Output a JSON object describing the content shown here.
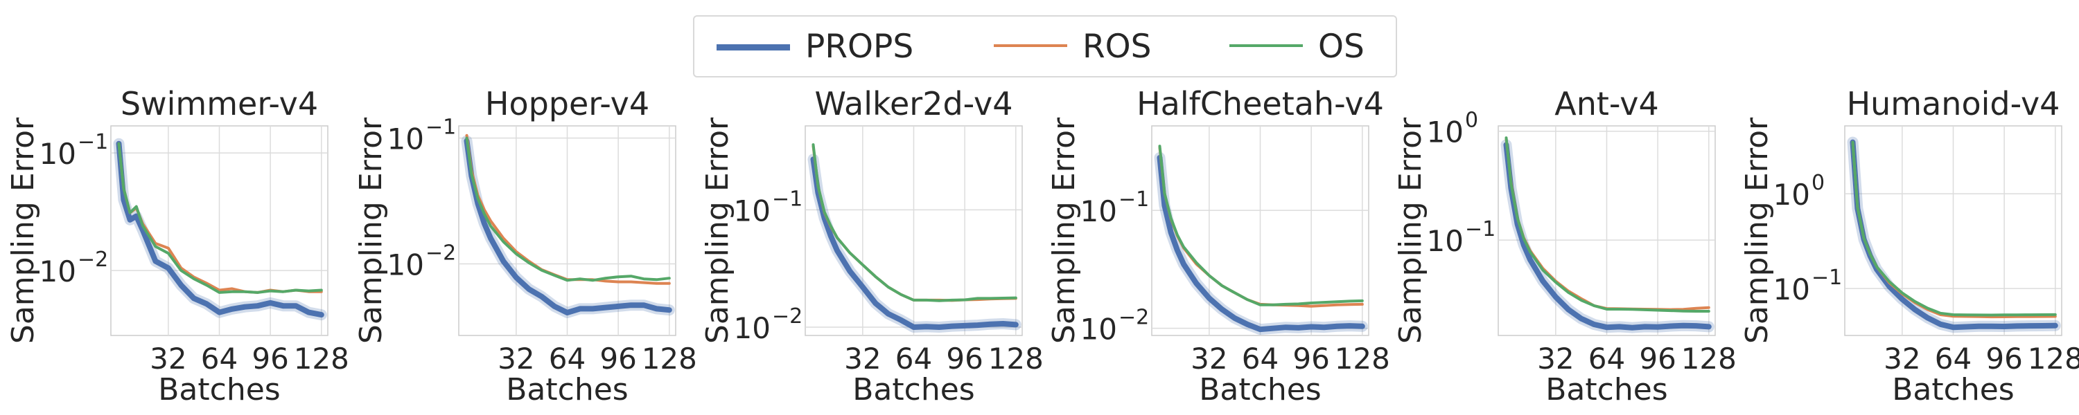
{
  "colors": {
    "PROPS": "#4c72b0",
    "ROS": "#dd8452",
    "OS": "#55a868",
    "grid": "#dcdcdc"
  },
  "legend": {
    "items": [
      {
        "label": "PROPS",
        "color": "#4c72b0"
      },
      {
        "label": "ROS",
        "color": "#dd8452"
      },
      {
        "label": "OS",
        "color": "#55a868"
      }
    ]
  },
  "chart_data": [
    {
      "type": "line",
      "title": "Swimmer-v4",
      "xlabel": "Batches",
      "ylabel": "Sampling Error",
      "yscale": "log",
      "xlim": [
        -4,
        132
      ],
      "ylim": [
        0.0028,
        0.17
      ],
      "xticks": [
        32,
        64,
        96,
        128
      ],
      "yticks": [
        0.1,
        0.01
      ],
      "yticklabels": [
        "10^-1",
        "10^-2"
      ],
      "x": [
        1,
        4,
        8,
        12,
        16,
        24,
        32,
        40,
        48,
        56,
        64,
        72,
        80,
        88,
        96,
        104,
        112,
        120,
        128
      ],
      "series": [
        {
          "name": "PROPS",
          "values": [
            0.12,
            0.04,
            0.027,
            0.029,
            0.022,
            0.012,
            0.0105,
            0.0075,
            0.0058,
            0.0052,
            0.0044,
            0.0047,
            0.0049,
            0.005,
            0.0053,
            0.005,
            0.005,
            0.0044,
            0.0042
          ]
        },
        {
          "name": "ROS",
          "values": [
            0.12,
            0.05,
            0.031,
            0.034,
            0.025,
            0.017,
            0.0155,
            0.0105,
            0.0088,
            0.0078,
            0.0068,
            0.007,
            0.0066,
            0.0065,
            0.0068,
            0.0066,
            0.0068,
            0.0066,
            0.0066
          ]
        },
        {
          "name": "OS",
          "values": [
            0.12,
            0.05,
            0.031,
            0.035,
            0.024,
            0.016,
            0.014,
            0.01,
            0.0085,
            0.0075,
            0.0065,
            0.0066,
            0.0066,
            0.0065,
            0.0067,
            0.0066,
            0.0068,
            0.0067,
            0.0068
          ]
        }
      ]
    },
    {
      "type": "line",
      "title": "Hopper-v4",
      "xlabel": "Batches",
      "ylabel": "Sampling Error",
      "yscale": "log",
      "xlim": [
        -4,
        132
      ],
      "ylim": [
        0.0027,
        0.125
      ],
      "xticks": [
        32,
        64,
        96,
        128
      ],
      "yticks": [
        0.1,
        0.01
      ],
      "yticklabels": [
        "10^-1",
        "10^-2"
      ],
      "x": [
        1,
        4,
        8,
        12,
        16,
        24,
        32,
        40,
        48,
        56,
        64,
        72,
        80,
        88,
        96,
        104,
        112,
        120,
        128
      ],
      "series": [
        {
          "name": "PROPS",
          "values": [
            0.095,
            0.05,
            0.03,
            0.021,
            0.016,
            0.0105,
            0.0078,
            0.0063,
            0.0055,
            0.0046,
            0.0041,
            0.0044,
            0.0044,
            0.0045,
            0.0046,
            0.0047,
            0.0047,
            0.0044,
            0.0043
          ]
        },
        {
          "name": "ROS",
          "values": [
            0.105,
            0.055,
            0.035,
            0.027,
            0.022,
            0.016,
            0.0125,
            0.0105,
            0.009,
            0.0082,
            0.0075,
            0.0075,
            0.0075,
            0.0073,
            0.0072,
            0.0072,
            0.0071,
            0.007,
            0.007
          ]
        },
        {
          "name": "OS",
          "values": [
            0.1,
            0.052,
            0.033,
            0.025,
            0.02,
            0.015,
            0.012,
            0.0102,
            0.0089,
            0.0081,
            0.0074,
            0.0076,
            0.0074,
            0.0077,
            0.0079,
            0.008,
            0.0076,
            0.0075,
            0.0077
          ]
        }
      ]
    },
    {
      "type": "line",
      "title": "Walker2d-v4",
      "xlabel": "Batches",
      "ylabel": "Sampling Error",
      "yscale": "log",
      "xlim": [
        -4,
        132
      ],
      "ylim": [
        0.0085,
        0.52
      ],
      "xticks": [
        32,
        64,
        96,
        128
      ],
      "yticks": [
        0.1,
        0.01
      ],
      "yticklabels": [
        "10^-1",
        "10^-2"
      ],
      "x": [
        1,
        4,
        8,
        12,
        16,
        24,
        32,
        40,
        48,
        56,
        64,
        72,
        80,
        88,
        96,
        104,
        112,
        120,
        128
      ],
      "series": [
        {
          "name": "PROPS",
          "values": [
            0.27,
            0.14,
            0.085,
            0.06,
            0.045,
            0.03,
            0.022,
            0.016,
            0.013,
            0.0115,
            0.01,
            0.0101,
            0.01,
            0.0102,
            0.0103,
            0.0104,
            0.0106,
            0.0107,
            0.0105
          ]
        },
        {
          "name": "ROS",
          "values": [
            0.35,
            0.16,
            0.095,
            0.072,
            0.058,
            0.043,
            0.034,
            0.027,
            0.022,
            0.019,
            0.017,
            0.017,
            0.017,
            0.0169,
            0.0171,
            0.0172,
            0.0174,
            0.0175,
            0.0176
          ]
        },
        {
          "name": "OS",
          "values": [
            0.36,
            0.16,
            0.096,
            0.073,
            0.058,
            0.043,
            0.034,
            0.027,
            0.022,
            0.019,
            0.017,
            0.017,
            0.0168,
            0.017,
            0.0171,
            0.0176,
            0.0176,
            0.0177,
            0.0178
          ]
        }
      ]
    },
    {
      "type": "line",
      "title": "HalfCheetah-v4",
      "xlabel": "Batches",
      "ylabel": "Sampling Error",
      "yscale": "log",
      "xlim": [
        -4,
        132
      ],
      "ylim": [
        0.0087,
        0.52
      ],
      "xticks": [
        32,
        64,
        96,
        128
      ],
      "yticks": [
        0.1,
        0.01
      ],
      "yticklabels": [
        "10^-1",
        "10^-2"
      ],
      "x": [
        1,
        4,
        8,
        12,
        16,
        24,
        32,
        40,
        48,
        56,
        64,
        72,
        80,
        88,
        96,
        104,
        112,
        120,
        128
      ],
      "series": [
        {
          "name": "PROPS",
          "values": [
            0.28,
            0.11,
            0.065,
            0.046,
            0.035,
            0.024,
            0.018,
            0.0145,
            0.0122,
            0.0108,
            0.0098,
            0.01,
            0.0102,
            0.0101,
            0.0103,
            0.0102,
            0.0104,
            0.0105,
            0.0104
          ]
        },
        {
          "name": "ROS",
          "values": [
            0.34,
            0.14,
            0.085,
            0.061,
            0.048,
            0.035,
            0.028,
            0.023,
            0.02,
            0.0175,
            0.016,
            0.0158,
            0.0157,
            0.0156,
            0.0154,
            0.0156,
            0.0158,
            0.0159,
            0.016
          ]
        },
        {
          "name": "OS",
          "values": [
            0.35,
            0.14,
            0.086,
            0.062,
            0.049,
            0.036,
            0.028,
            0.023,
            0.02,
            0.0175,
            0.0158,
            0.0158,
            0.016,
            0.0161,
            0.0164,
            0.0166,
            0.0168,
            0.017,
            0.0171
          ]
        }
      ]
    },
    {
      "type": "line",
      "title": "Ant-v4",
      "xlabel": "Batches",
      "ylabel": "Sampling Error",
      "yscale": "log",
      "xlim": [
        -4,
        132
      ],
      "ylim": [
        0.0133,
        1.12
      ],
      "xticks": [
        32,
        64,
        96,
        128
      ],
      "yticks": [
        1,
        0.1
      ],
      "yticklabels": [
        "10^0",
        "10^-1"
      ],
      "x": [
        1,
        4,
        8,
        12,
        16,
        24,
        32,
        40,
        48,
        56,
        64,
        72,
        80,
        88,
        96,
        104,
        112,
        120,
        128
      ],
      "series": [
        {
          "name": "PROPS",
          "values": [
            0.75,
            0.3,
            0.14,
            0.09,
            0.066,
            0.042,
            0.03,
            0.023,
            0.019,
            0.0168,
            0.0158,
            0.016,
            0.0157,
            0.016,
            0.0159,
            0.0162,
            0.0164,
            0.0163,
            0.016
          ]
        },
        {
          "name": "ROS",
          "values": [
            0.85,
            0.34,
            0.16,
            0.105,
            0.08,
            0.055,
            0.042,
            0.034,
            0.029,
            0.025,
            0.0235,
            0.0234,
            0.0233,
            0.0232,
            0.0231,
            0.023,
            0.0231,
            0.0236,
            0.024
          ]
        },
        {
          "name": "OS",
          "values": [
            0.87,
            0.33,
            0.16,
            0.103,
            0.078,
            0.053,
            0.041,
            0.033,
            0.028,
            0.025,
            0.0232,
            0.0232,
            0.0231,
            0.0229,
            0.0227,
            0.0225,
            0.0223,
            0.0222,
            0.0222
          ]
        }
      ]
    },
    {
      "type": "line",
      "title": "Humanoid-v4",
      "xlabel": "Batches",
      "ylabel": "Sampling Error",
      "yscale": "log",
      "xlim": [
        -4,
        132
      ],
      "ylim": [
        0.032,
        5.2
      ],
      "xticks": [
        32,
        64,
        96,
        128
      ],
      "yticks": [
        1,
        0.1
      ],
      "yticklabels": [
        "10^0",
        "10^-1"
      ],
      "x": [
        1,
        4,
        8,
        12,
        16,
        24,
        32,
        40,
        48,
        56,
        64,
        72,
        80,
        88,
        96,
        104,
        112,
        120,
        128
      ],
      "series": [
        {
          "name": "PROPS",
          "values": [
            3.5,
            0.7,
            0.33,
            0.22,
            0.16,
            0.105,
            0.077,
            0.06,
            0.049,
            0.042,
            0.039,
            0.0395,
            0.04,
            0.04,
            0.0398,
            0.0402,
            0.0404,
            0.0405,
            0.0407
          ]
        },
        {
          "name": "ROS",
          "values": [
            3.5,
            0.72,
            0.34,
            0.23,
            0.17,
            0.115,
            0.088,
            0.071,
            0.06,
            0.053,
            0.051,
            0.0508,
            0.0505,
            0.0503,
            0.0504,
            0.0505,
            0.0506,
            0.0507,
            0.0508
          ]
        },
        {
          "name": "OS",
          "values": [
            3.5,
            0.72,
            0.34,
            0.23,
            0.17,
            0.118,
            0.09,
            0.073,
            0.062,
            0.055,
            0.053,
            0.0528,
            0.0526,
            0.0525,
            0.0527,
            0.0528,
            0.0529,
            0.053,
            0.0531
          ]
        }
      ]
    }
  ]
}
